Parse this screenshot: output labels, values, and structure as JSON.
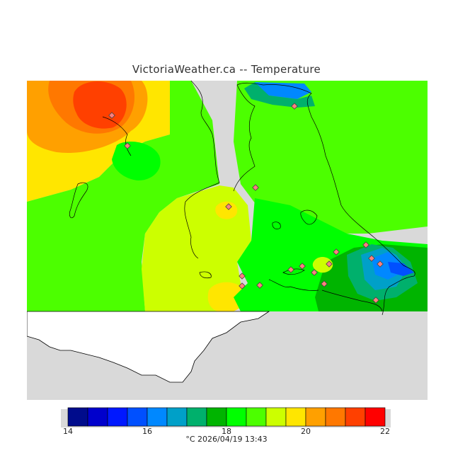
{
  "title": "VictoriaWeather.ca -- Temperature",
  "colorbar": {
    "min": 14,
    "max": 22,
    "tick_labels": [
      "14",
      "16",
      "18",
      "20",
      "22"
    ],
    "colors": [
      "#000c8c",
      "#0000cc",
      "#0018ff",
      "#0050ff",
      "#0088ff",
      "#00a0c8",
      "#00b06c",
      "#00b400",
      "#00ff00",
      "#4cff00",
      "#ccff00",
      "#ffe600",
      "#ffa000",
      "#ff7800",
      "#ff4000",
      "#ff0000"
    ],
    "footer": "°C  2026/04/19 13:43"
  },
  "colors": {
    "no_data": "#d9d9d9",
    "land_white": "#ffffff",
    "coast": "#000000"
  },
  "stations": 22
}
